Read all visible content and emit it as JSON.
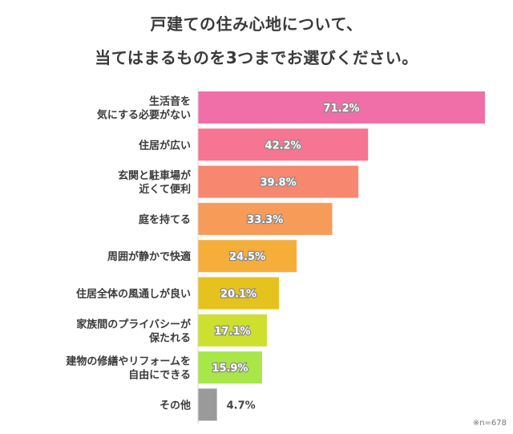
{
  "header": {
    "title_line1": "戸建ての住み心地について、",
    "title_line2": "当てはまるものを3つまでお選びください。"
  },
  "note": "※n=678",
  "chart_data": {
    "type": "bar",
    "orientation": "horizontal",
    "title": "戸建ての住み心地について、当てはまるものを3つまでお選びください。",
    "xlabel": "",
    "ylabel": "",
    "unit": "%",
    "xlim": [
      0,
      71.2
    ],
    "grid": false,
    "legend": "none",
    "categories": [
      [
        "生活音を",
        "気にする必要がない"
      ],
      [
        "住居が広い"
      ],
      [
        "玄関と駐車場が",
        "近くて便利"
      ],
      [
        "庭を持てる"
      ],
      [
        "周囲が静かで快適"
      ],
      [
        "住居全体の風通しが良い"
      ],
      [
        "家族間のプライバシーが",
        "保たれる"
      ],
      [
        "建物の修繕やリフォームを",
        "自由にできる"
      ],
      [
        "その他"
      ]
    ],
    "values": [
      71.2,
      42.2,
      39.8,
      33.3,
      24.5,
      20.1,
      17.1,
      15.9,
      4.7
    ],
    "labels": [
      "71.2%",
      "42.2%",
      "39.8%",
      "33.3%",
      "24.5%",
      "20.1%",
      "17.1%",
      "15.9%",
      "4.7%"
    ],
    "colors": [
      "#f06fa8",
      "#f57592",
      "#f7886f",
      "#f79b59",
      "#f6ae3a",
      "#e6c21f",
      "#cde02f",
      "#a8e64a",
      "#9a9a9a"
    ]
  }
}
